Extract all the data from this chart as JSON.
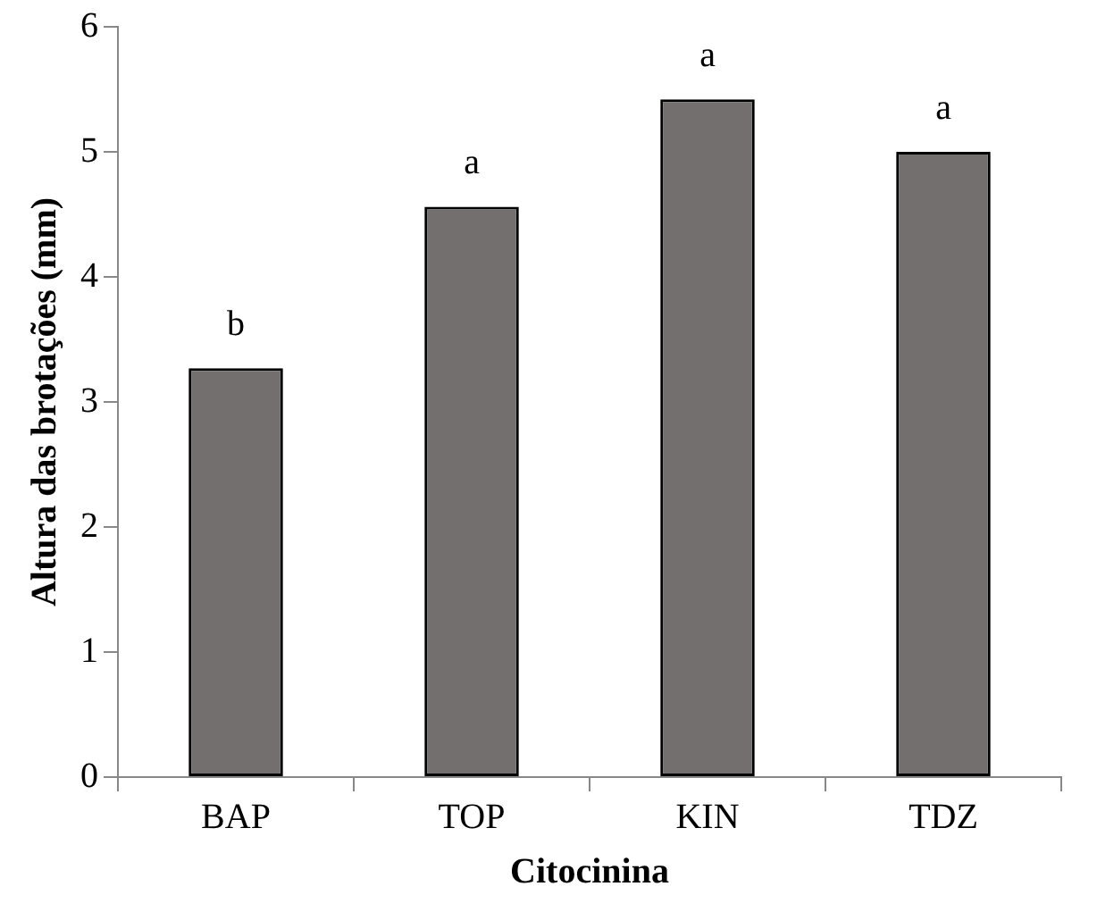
{
  "chart_data": {
    "type": "bar",
    "xlabel": "Citocinina",
    "ylabel": "Altura das brotações (mm)",
    "categories": [
      "BAP",
      "TOP",
      "KIN",
      "TDZ"
    ],
    "values": [
      3.27,
      4.56,
      5.42,
      5.0
    ],
    "color": "#736f6e",
    "ylim": [
      0,
      6
    ],
    "yticks": [
      0,
      1,
      2,
      3,
      4,
      5,
      6
    ],
    "grid": false,
    "legend": false,
    "annotations": [
      {
        "text": "b",
        "x": "BAP",
        "y": 3.27
      },
      {
        "text": "a",
        "x": "TOP",
        "y": 4.56
      },
      {
        "text": "a",
        "x": "KIN",
        "y": 5.42
      },
      {
        "text": "a",
        "x": "TDZ",
        "y": 5.0
      }
    ]
  }
}
